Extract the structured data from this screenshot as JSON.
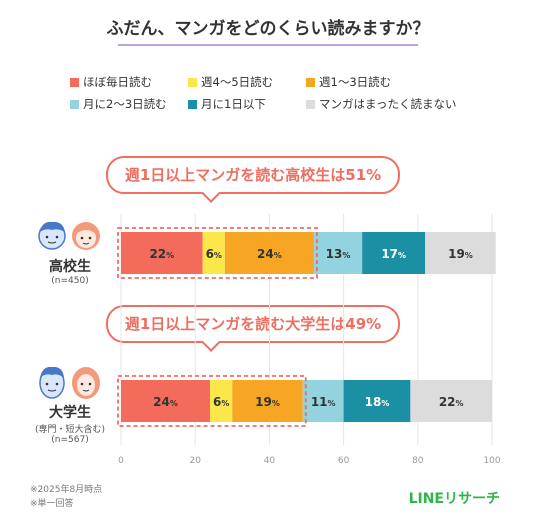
{
  "title": "ふだん、マンガをどのくらい読みますか？",
  "legend": [
    {
      "label": "ほぼ毎日読む",
      "color": "#f26b5b"
    },
    {
      "label": "週4～5日読む",
      "color": "#fbe74a"
    },
    {
      "label": "週1～3日読む",
      "color": "#f6a623"
    },
    {
      "label": "月に2～3日読む",
      "color": "#93d3df"
    },
    {
      "label": "月に1日以下",
      "color": "#1b8fa3"
    },
    {
      "label": "マンガはまったく読まない",
      "color": "#dcdcdc"
    }
  ],
  "callouts": {
    "high_school": "週1日以上マンガを読む高校生は51%",
    "university": "週1日以上マンガを読む大学生は49%"
  },
  "rows": [
    {
      "name": "高校生",
      "sub1": "(n=450)",
      "sub2": ""
    },
    {
      "name": "大学生",
      "sub1": "(専門・短大含む)",
      "sub2": "(n=567)"
    }
  ],
  "footnotes": [
    "※2025年8月時点",
    "※単一回答"
  ],
  "brand": "LINEリサーチ",
  "chart_data": {
    "type": "bar",
    "orientation": "horizontal-stacked",
    "categories": [
      "高校生",
      "大学生"
    ],
    "series": [
      {
        "name": "ほぼ毎日読む",
        "values": [
          22,
          24
        ],
        "color": "#f26b5b"
      },
      {
        "name": "週4～5日読む",
        "values": [
          6,
          6
        ],
        "color": "#fbe74a"
      },
      {
        "name": "週1～3日読む",
        "values": [
          24,
          19
        ],
        "color": "#f6a623"
      },
      {
        "name": "月に2～3日読む",
        "values": [
          13,
          11
        ],
        "color": "#93d3df"
      },
      {
        "name": "月に1日以下",
        "values": [
          17,
          18
        ],
        "color": "#1b8fa3"
      },
      {
        "name": "マンガはまったく読まない",
        "values": [
          19,
          22
        ],
        "color": "#dcdcdc"
      }
    ],
    "xlim": [
      0,
      100
    ],
    "xticks": [
      0,
      20,
      40,
      60,
      80,
      100
    ],
    "value_suffix": "%"
  }
}
